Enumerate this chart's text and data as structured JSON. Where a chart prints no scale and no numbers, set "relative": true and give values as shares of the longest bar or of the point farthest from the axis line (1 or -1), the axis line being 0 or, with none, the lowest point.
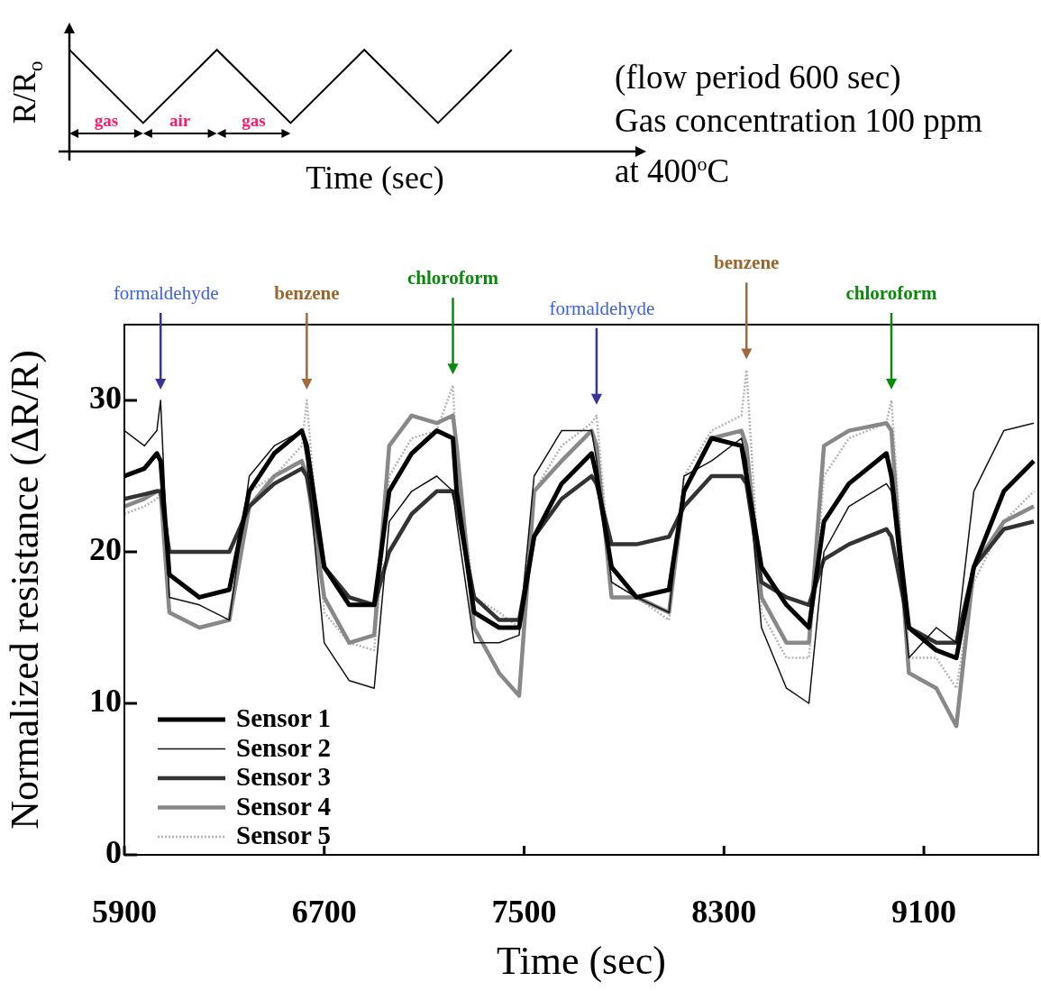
{
  "chart_data": [
    {
      "type": "line",
      "relative": true,
      "xlabel": "Time (sec)",
      "ylabel": "R/R$_{o}$",
      "categories": [
        null,
        null,
        null,
        null,
        null,
        null,
        null
      ],
      "values": [
        1,
        0.28,
        1,
        0.28,
        1,
        0.28,
        1
      ],
      "color": "#000000",
      "annotations": [
        "gas",
        "air",
        "gas",
        "(flow period 600 sec)",
        "Gas concentration 100 ppm",
        "at 400$^{o}$C"
      ]
    },
    {
      "type": "line",
      "xlabel": "Time (sec)",
      "ylabel": "Normalized resistance (ΔR/R)",
      "xlim": [
        5900,
        9558
      ],
      "xticks": [
        5900,
        6700,
        7500,
        8300,
        9100
      ],
      "ylim": [
        0,
        35
      ],
      "yticks": [
        0,
        10,
        20,
        30
      ],
      "legend": "bottom left",
      "x": [
        5900,
        5980,
        6030,
        6045,
        6080,
        6200,
        6320,
        6400,
        6500,
        6610,
        6630,
        6700,
        6800,
        6900,
        6960,
        7050,
        7150,
        7215,
        7230,
        7300,
        7400,
        7480,
        7540,
        7650,
        7770,
        7790,
        7850,
        7950,
        8080,
        8140,
        8250,
        8370,
        8390,
        8450,
        8550,
        8640,
        8700,
        8800,
        8950,
        8970,
        9040,
        9150,
        9230,
        9300,
        9420,
        9540
      ],
      "series": [
        {
          "name": "Sensor 1",
          "color": "#000000",
          "values": [
            25,
            25.5,
            26.5,
            26,
            18.5,
            17,
            17.5,
            24,
            26.5,
            28,
            27,
            19,
            16.5,
            16.5,
            24,
            26.5,
            28,
            27.5,
            24,
            16,
            15,
            15,
            21,
            24.5,
            26.5,
            25,
            19,
            17,
            17.5,
            24,
            27.5,
            27,
            25,
            19,
            16.5,
            15,
            22,
            24.5,
            26.5,
            25,
            15,
            13.5,
            13,
            19,
            24,
            26
          ]
        },
        {
          "name": "Sensor 2",
          "color": "#111111",
          "values": [
            28,
            27,
            28,
            30,
            17,
            16.5,
            15.5,
            25,
            27,
            28,
            26,
            14,
            11.5,
            11,
            22,
            24,
            25,
            24,
            22,
            14,
            14,
            14.5,
            25,
            28,
            28,
            26,
            18,
            17,
            16,
            25,
            26,
            27.5,
            26,
            15,
            11,
            10,
            20,
            23,
            24.5,
            24,
            13,
            15,
            14,
            24,
            28,
            28.5
          ]
        },
        {
          "name": "Sensor 3",
          "color": "#333333",
          "values": [
            23.5,
            23.8,
            24,
            24,
            20,
            20,
            20,
            23,
            24.5,
            25.5,
            25,
            19,
            17,
            16.5,
            20,
            22.5,
            24,
            24,
            23,
            17,
            15.5,
            15.5,
            21,
            23.5,
            25,
            24.5,
            20.5,
            20.5,
            21,
            23,
            25,
            25,
            24.5,
            18,
            17,
            16.5,
            19.5,
            20.5,
            21.5,
            21,
            15,
            14,
            14,
            19,
            21.5,
            22
          ]
        },
        {
          "name": "Sensor 4",
          "color": "#888888",
          "values": [
            23,
            23.5,
            24,
            24,
            16,
            15,
            15.5,
            23,
            25,
            26,
            25,
            17,
            14,
            14.5,
            27,
            29,
            28.5,
            29,
            27,
            15,
            12,
            10.5,
            24,
            26,
            28,
            27,
            17,
            17,
            16,
            24,
            27.5,
            28,
            27,
            17,
            14,
            14,
            27,
            28,
            28.5,
            28,
            12,
            11,
            8.5,
            19,
            22,
            23
          ]
        },
        {
          "name": "Sensor 5",
          "color": "#b4b4b4",
          "line_style": "dotted",
          "values": [
            22.5,
            23,
            23.5,
            24,
            16,
            15,
            15.5,
            24,
            25,
            27,
            30,
            16,
            14,
            13.5,
            25,
            27.5,
            28,
            31,
            26,
            17,
            16,
            15,
            24,
            27,
            28.5,
            29,
            18,
            17,
            15.5,
            25,
            28,
            29,
            32,
            16,
            13,
            13,
            25,
            27.5,
            28.5,
            30,
            13,
            13,
            11,
            18,
            22,
            24
          ]
        }
      ],
      "annotations": [
        "formaldehyde",
        "benzene",
        "chloroform",
        "formaldehyde",
        "benzene",
        "chloroform"
      ]
    }
  ]
}
